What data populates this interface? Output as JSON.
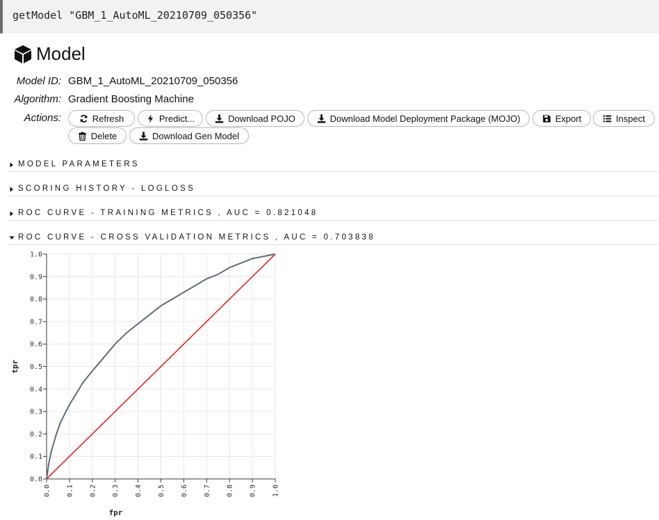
{
  "cell": {
    "code": "getModel \"GBM_1_AutoML_20210709_050356\""
  },
  "model": {
    "title": "Model",
    "id_label": "Model ID:",
    "id_value": "GBM_1_AutoML_20210709_050356",
    "algo_label": "Algorithm:",
    "algo_value": "Gradient Boosting Machine",
    "actions_label": "Actions:"
  },
  "actions": {
    "refresh": "Refresh",
    "predict": "Predict...",
    "download_pojo": "Download POJO",
    "download_mojo": "Download Model Deployment Package (MOJO)",
    "export": "Export",
    "inspect": "Inspect",
    "delete": "Delete",
    "download_gen": "Download Gen Model"
  },
  "sections": {
    "params": "MODEL PARAMETERS",
    "scoring": "SCORING HISTORY - LOGLOSS",
    "roc_train": "ROC CURVE - TRAINING METRICS , AUC = 0.821048",
    "roc_cv": "ROC CURVE - CROSS VALIDATION METRICS , AUC = 0.703838"
  },
  "colors": {
    "curve": "#5f6b7a",
    "diagonal": "#e8231e",
    "grid": "#e6e6e6"
  },
  "chart_data": {
    "type": "line",
    "xlabel": "fpr",
    "ylabel": "tpr",
    "xlim": [
      0,
      1
    ],
    "ylim": [
      0,
      1
    ],
    "grid": true,
    "x_ticks": [
      "0.0",
      "0.1",
      "0.2",
      "0.3",
      "0.4",
      "0.5",
      "0.6",
      "0.7",
      "0.8",
      "0.9",
      "1.0"
    ],
    "y_ticks": [
      "0.0",
      "0.1",
      "0.2",
      "0.3",
      "0.4",
      "0.5",
      "0.6",
      "0.7",
      "0.8",
      "0.9",
      "1.0"
    ],
    "series": [
      {
        "x": [
          0,
          0.01,
          0.02,
          0.04,
          0.06,
          0.08,
          0.1,
          0.13,
          0.16,
          0.2,
          0.25,
          0.3,
          0.35,
          0.4,
          0.45,
          0.5,
          0.55,
          0.6,
          0.65,
          0.7,
          0.75,
          0.8,
          0.85,
          0.9,
          0.95,
          1.0
        ],
        "y": [
          0,
          0.07,
          0.12,
          0.19,
          0.25,
          0.29,
          0.33,
          0.38,
          0.43,
          0.48,
          0.54,
          0.6,
          0.65,
          0.69,
          0.73,
          0.77,
          0.8,
          0.83,
          0.86,
          0.89,
          0.91,
          0.94,
          0.96,
          0.98,
          0.99,
          1.0
        ]
      },
      {
        "x": [
          0,
          1
        ],
        "y": [
          0,
          1
        ]
      }
    ]
  }
}
